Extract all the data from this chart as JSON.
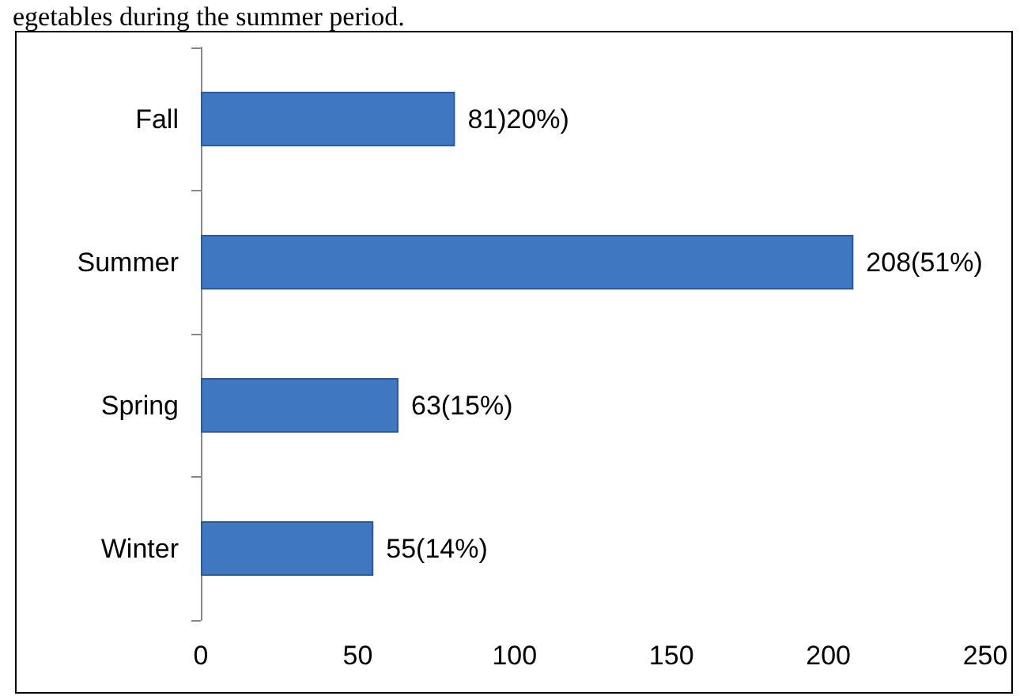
{
  "chart_data": {
    "type": "bar",
    "orientation": "horizontal",
    "annotations": [
      "egetables during the summer period."
    ],
    "categories": [
      "Fall",
      "Summer",
      "Spring",
      "Winter"
    ],
    "values": [
      81,
      208,
      63,
      55
    ],
    "value_labels": [
      "81)20%)",
      "208(51%)",
      "63(15%)",
      "55(14%)"
    ],
    "color": "#3f78c0",
    "xlim": [
      0,
      250
    ],
    "xticks": [
      0,
      50,
      100,
      150,
      200,
      250
    ],
    "grid": false
  }
}
